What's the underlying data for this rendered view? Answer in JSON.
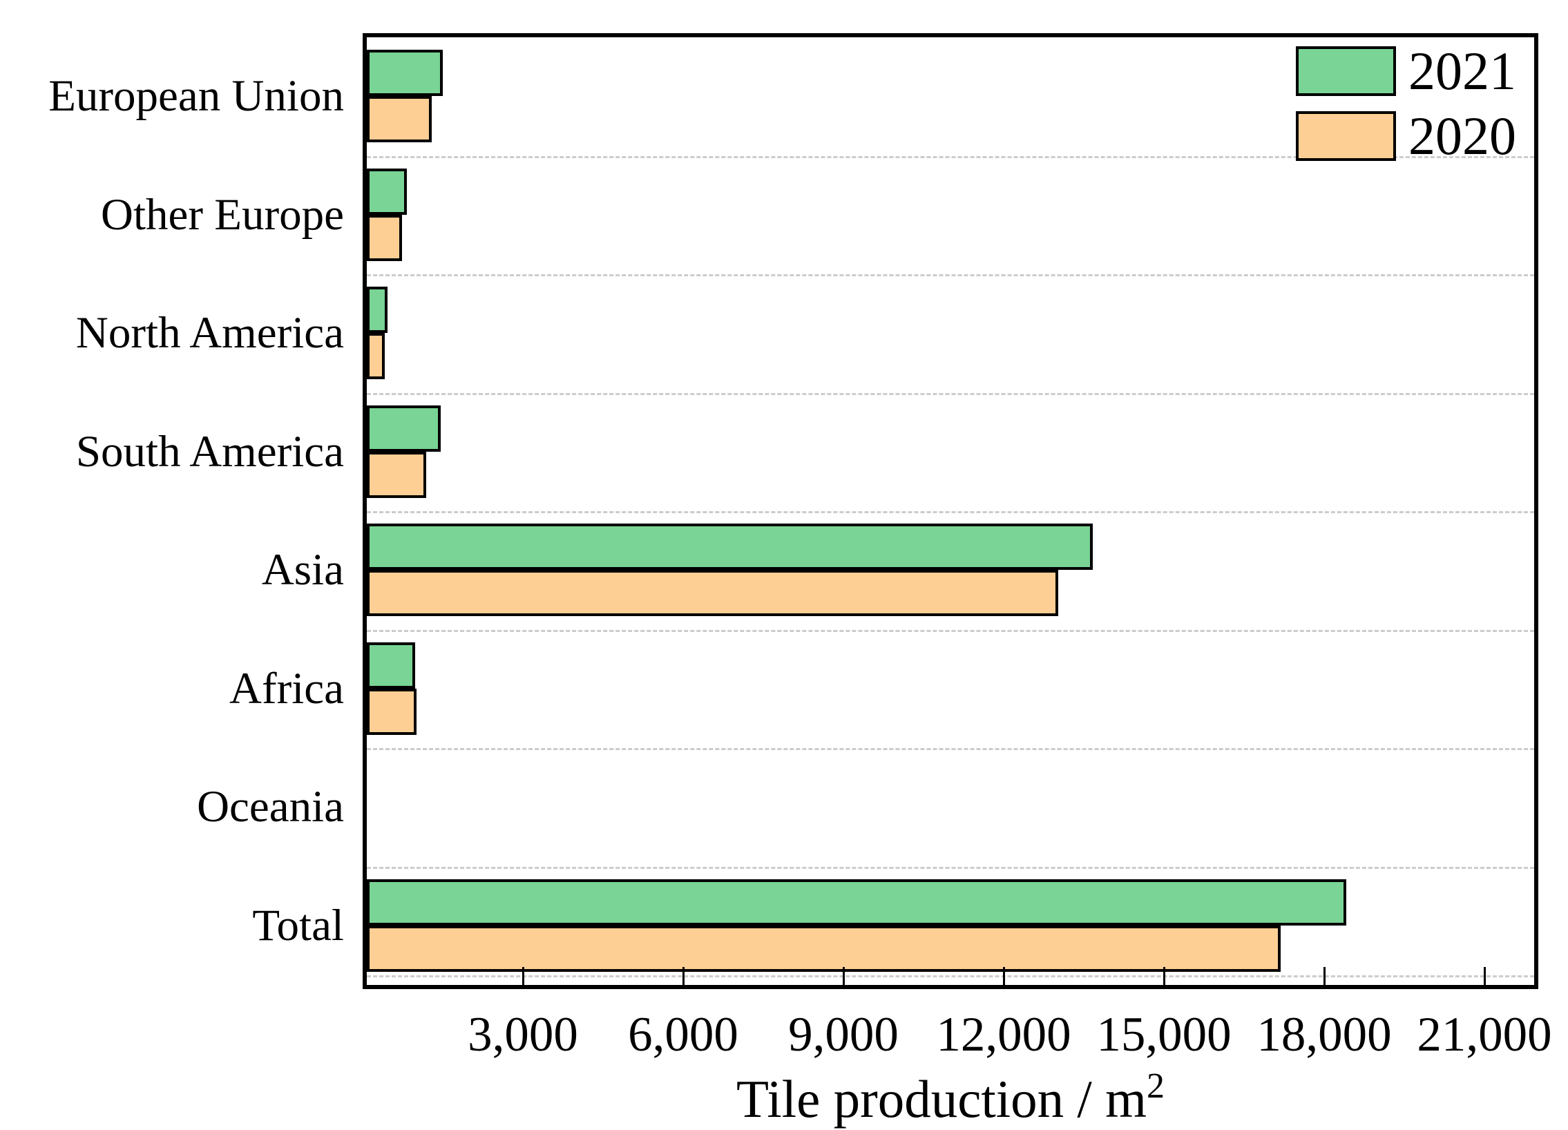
{
  "chart_data": {
    "type": "bar",
    "orientation": "horizontal",
    "title": "",
    "xlabel": "Tile production / m²",
    "xlabel_base": "Tile production / m",
    "xlabel_sup": "2",
    "ylabel": "",
    "categories": [
      "European Union",
      "Other Europe",
      "North America",
      "South America",
      "Asia",
      "Africa",
      "Oceania",
      "Total"
    ],
    "series": [
      {
        "name": "2021",
        "color": "#79d495",
        "values": [
          1420,
          745,
          390,
          1380,
          13590,
          900,
          5,
          18330
        ]
      },
      {
        "name": "2020",
        "color": "#fecf94",
        "values": [
          1220,
          655,
          330,
          1110,
          12950,
          935,
          5,
          17110
        ]
      }
    ],
    "x_ticks": [
      3000,
      6000,
      9000,
      12000,
      15000,
      18000,
      21000
    ],
    "x_tick_labels": [
      "3,000",
      "6,000",
      "9,000",
      "12,000",
      "15,000",
      "18,000",
      "21,000"
    ],
    "xlim": [
      0,
      21950
    ],
    "grid": "horizontal dashed lines between category rows",
    "legend_position": "top-right inside plot",
    "units": "m²"
  },
  "colors": {
    "bar_2021": "#79d495",
    "bar_2020": "#fecf94",
    "bar_border": "#000000",
    "frame": "#000000",
    "gridline": "#cccccc",
    "background": "#ffffff"
  }
}
